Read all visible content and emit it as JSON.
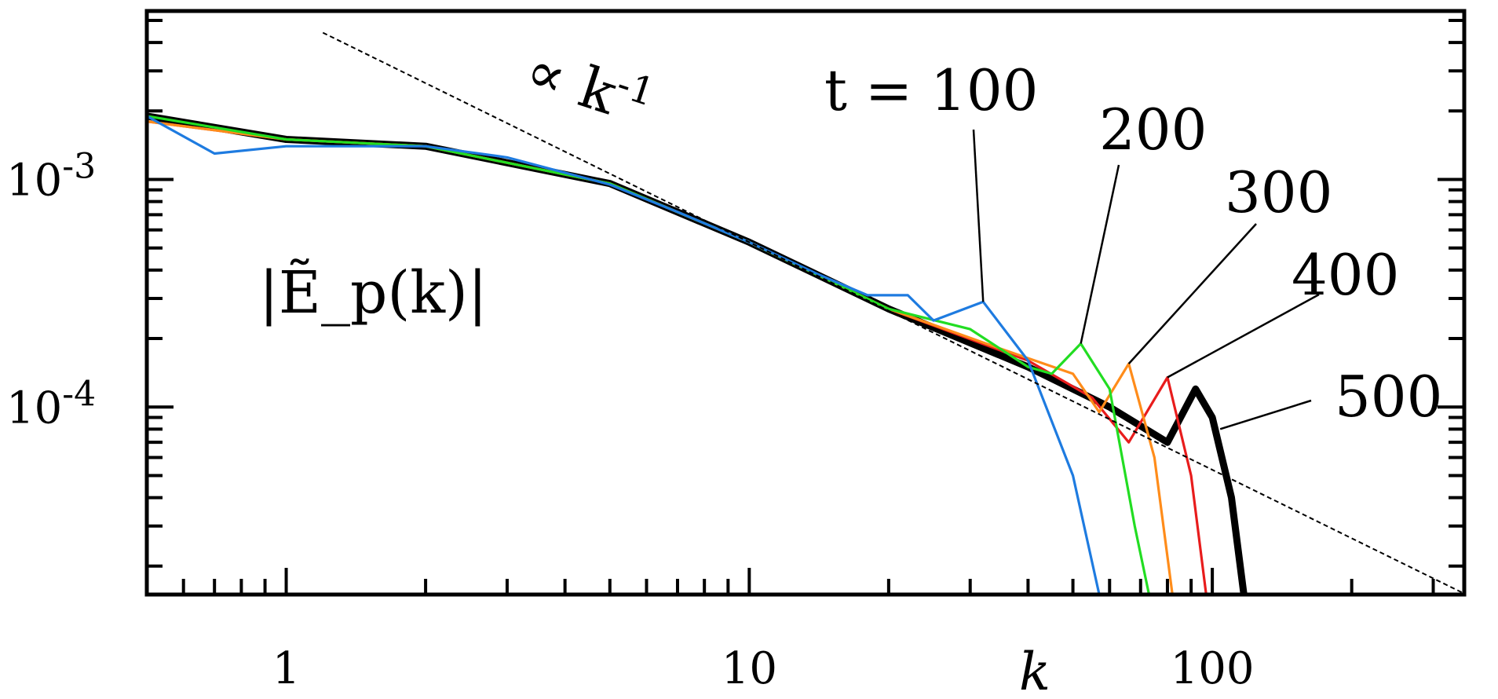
{
  "chart_data": {
    "type": "line",
    "title": "",
    "xlabel": "k",
    "ylabel": "|Ẽ_p(k)|",
    "xscale": "log",
    "yscale": "log",
    "xlim": [
      0.5,
      350
    ],
    "ylim": [
      1.5e-05,
      0.0055
    ],
    "grid": false,
    "x_ticks": [
      {
        "value": 1,
        "label": "1"
      },
      {
        "value": 10,
        "label": "10"
      },
      {
        "value": 100,
        "label": "100"
      }
    ],
    "y_ticks": [
      {
        "value": 0.001,
        "base": "10",
        "exp": "-3"
      },
      {
        "value": 0.0001,
        "base": "10",
        "exp": "-4"
      }
    ],
    "reference_line": {
      "label": "∝ k",
      "exponent_label": "-1",
      "slope": -1,
      "k0": 10,
      "y0": 0.00053
    },
    "series": [
      {
        "name": "t = 100",
        "color": "#1e7be0",
        "values": [
          [
            0.5,
            0.0019
          ],
          [
            0.7,
            0.0013
          ],
          [
            1.0,
            0.0014
          ],
          [
            1.5,
            0.0014
          ],
          [
            2.0,
            0.0014
          ],
          [
            3.0,
            0.00125
          ],
          [
            5.0,
            0.00095
          ],
          [
            7.0,
            0.00072
          ],
          [
            10,
            0.00053
          ],
          [
            14,
            0.000385
          ],
          [
            18,
            0.00031
          ],
          [
            22,
            0.00031
          ],
          [
            25,
            0.00024
          ],
          [
            32,
            0.00029
          ],
          [
            40,
            0.00016
          ],
          [
            50,
            5e-05
          ],
          [
            57,
            1.5e-05
          ]
        ]
      },
      {
        "name": "200",
        "color": "#22dd22",
        "values": [
          [
            0.5,
            0.0019
          ],
          [
            1.0,
            0.0015
          ],
          [
            2.0,
            0.0014
          ],
          [
            5.0,
            0.00096
          ],
          [
            10,
            0.00053
          ],
          [
            20,
            0.00027
          ],
          [
            30,
            0.00022
          ],
          [
            40,
            0.00015
          ],
          [
            45,
            0.00014
          ],
          [
            52,
            0.00019
          ],
          [
            60,
            0.00012
          ],
          [
            68,
            3e-05
          ],
          [
            73,
            1.5e-05
          ]
        ]
      },
      {
        "name": "300",
        "color": "#ff8c1a",
        "values": [
          [
            0.5,
            0.0018
          ],
          [
            1.0,
            0.0015
          ],
          [
            2.0,
            0.0014
          ],
          [
            5.0,
            0.00096
          ],
          [
            10,
            0.00053
          ],
          [
            20,
            0.00027
          ],
          [
            35,
            0.00018
          ],
          [
            50,
            0.00014
          ],
          [
            57,
            9.5e-05
          ],
          [
            66,
            0.000155
          ],
          [
            75,
            6e-05
          ],
          [
            82,
            1.5e-05
          ]
        ]
      },
      {
        "name": "400",
        "color": "#e81c1c",
        "values": [
          [
            0.5,
            0.0018
          ],
          [
            1.0,
            0.0015
          ],
          [
            2.0,
            0.0014
          ],
          [
            5.0,
            0.00096
          ],
          [
            10,
            0.00053
          ],
          [
            20,
            0.00027
          ],
          [
            40,
            0.00016
          ],
          [
            55,
            0.00011
          ],
          [
            66,
            7e-05
          ],
          [
            80,
            0.000135
          ],
          [
            90,
            5e-05
          ],
          [
            97,
            1.5e-05
          ]
        ]
      },
      {
        "name": "500",
        "color": "#000000",
        "values": [
          [
            0.5,
            0.0019
          ],
          [
            1.0,
            0.0015
          ],
          [
            2.0,
            0.0014
          ],
          [
            5.0,
            0.00096
          ],
          [
            10,
            0.00053
          ],
          [
            20,
            0.00027
          ],
          [
            40,
            0.00015
          ],
          [
            60,
            0.0001
          ],
          [
            80,
            7e-05
          ],
          [
            92,
            0.00012
          ],
          [
            100,
            9e-05
          ],
          [
            110,
            4e-05
          ],
          [
            117,
            1.5e-05
          ]
        ]
      }
    ],
    "annotations": [
      {
        "text": "t = 100",
        "lx": 32,
        "ly": 0.00029
      },
      {
        "text": "200",
        "lx": 52,
        "ly": 0.00019
      },
      {
        "text": "300",
        "lx": 66,
        "ly": 0.000155
      },
      {
        "text": "400",
        "lx": 80,
        "ly": 0.000135
      },
      {
        "text": "500",
        "lx": 104,
        "ly": 8e-05
      }
    ]
  }
}
